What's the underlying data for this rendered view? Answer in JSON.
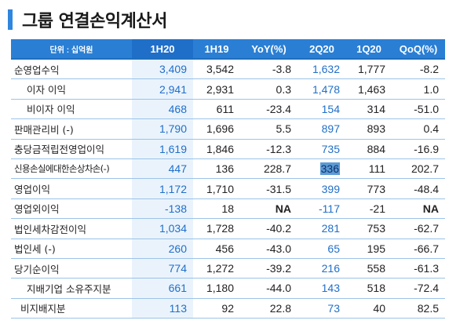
{
  "title": "그룹 연결손익계산서",
  "header": {
    "unit": "단위 : 십억원",
    "columns": [
      "1H20",
      "1H19",
      "YoY(%)",
      "2Q20",
      "1Q20",
      "QoQ(%)"
    ]
  },
  "rows": [
    {
      "label": "순영업수익",
      "values": [
        "3,409",
        "3,542",
        "-3.8",
        "1,632",
        "1,777",
        "-8.2"
      ]
    },
    {
      "label": "이자 이익",
      "values": [
        "2,941",
        "2,931",
        "0.3",
        "1,478",
        "1,463",
        "1.0"
      ]
    },
    {
      "label": "비이자 이익",
      "values": [
        "468",
        "611",
        "-23.4",
        "154",
        "314",
        "-51.0"
      ]
    },
    {
      "label": "판매관리비 (-)",
      "values": [
        "1,790",
        "1,696",
        "5.5",
        "897",
        "893",
        "0.4"
      ]
    },
    {
      "label": "충당금적립전영업이익",
      "values": [
        "1,619",
        "1,846",
        "-12.3",
        "735",
        "884",
        "-16.9"
      ]
    },
    {
      "label": "신용손실에대한손상차손(-)",
      "values": [
        "447",
        "136",
        "228.7",
        "336",
        "111",
        "202.7"
      ]
    },
    {
      "label": "영업이익",
      "values": [
        "1,172",
        "1,710",
        "-31.5",
        "399",
        "773",
        "-48.4"
      ]
    },
    {
      "label": "영업외이익",
      "values": [
        "-138",
        "18",
        "NA",
        "-117",
        "-21",
        "NA"
      ]
    },
    {
      "label": "법인세차감전이익",
      "values": [
        "1,034",
        "1,728",
        "-40.2",
        "281",
        "753",
        "-62.7"
      ]
    },
    {
      "label": "법인세 (-)",
      "values": [
        "260",
        "456",
        "-43.0",
        "65",
        "195",
        "-66.7"
      ]
    },
    {
      "label": "당기순이익",
      "values": [
        "774",
        "1,272",
        "-39.2",
        "216",
        "558",
        "-61.3"
      ]
    },
    {
      "label": "지배기업 소유주지분",
      "values": [
        "661",
        "1,180",
        "-44.0",
        "143",
        "518",
        "-72.4"
      ]
    },
    {
      "label": "비지배지분",
      "values": [
        "113",
        "92",
        "22.8",
        "73",
        "40",
        "82.5"
      ]
    }
  ],
  "colors": {
    "accent": "#2a7fd4",
    "h1_bg": "#eaf3fc",
    "h1_text": "#1f6fc9"
  }
}
